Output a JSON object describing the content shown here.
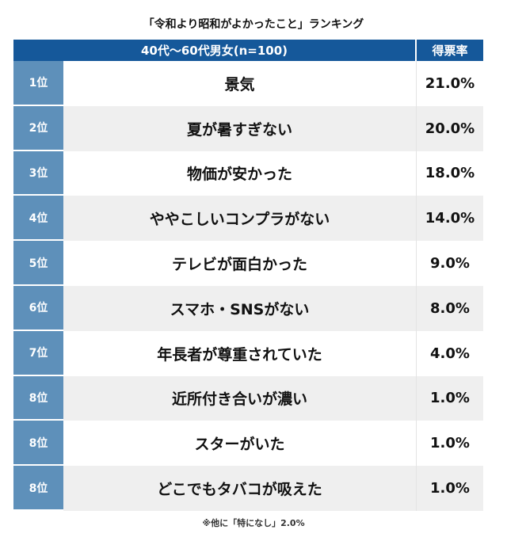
{
  "title": "「令和より昭和がよかったこと」ランキング",
  "chart_data": {
    "type": "table",
    "title": "「令和より昭和がよかったこと」ランキング",
    "columns": [
      "40代〜60代男女(n=100)",
      "得票率"
    ],
    "rows": [
      {
        "rank": "1位",
        "item": "景気",
        "percent": "21.0%",
        "value": 21.0
      },
      {
        "rank": "2位",
        "item": "夏が暑すぎない",
        "percent": "20.0%",
        "value": 20.0
      },
      {
        "rank": "3位",
        "item": "物価が安かった",
        "percent": "18.0%",
        "value": 18.0
      },
      {
        "rank": "4位",
        "item": "ややこしいコンプラがない",
        "percent": "14.0%",
        "value": 14.0
      },
      {
        "rank": "5位",
        "item": "テレビが面白かった",
        "percent": "9.0%",
        "value": 9.0
      },
      {
        "rank": "6位",
        "item": "スマホ・SNSがない",
        "percent": "8.0%",
        "value": 8.0
      },
      {
        "rank": "7位",
        "item": "年長者が尊重されていた",
        "percent": "4.0%",
        "value": 4.0
      },
      {
        "rank": "8位",
        "item": "近所付き合いが濃い",
        "percent": "1.0%",
        "value": 1.0
      },
      {
        "rank": "8位",
        "item": "スターがいた",
        "percent": "1.0%",
        "value": 1.0
      },
      {
        "rank": "8位",
        "item": "どこでもタバコが吸えた",
        "percent": "1.0%",
        "value": 1.0
      }
    ],
    "footnote": "※他に「特になし」2.0%"
  },
  "colors": {
    "header": "#15589a",
    "rank": "#5e90ba",
    "alt_row": "#efefef"
  }
}
